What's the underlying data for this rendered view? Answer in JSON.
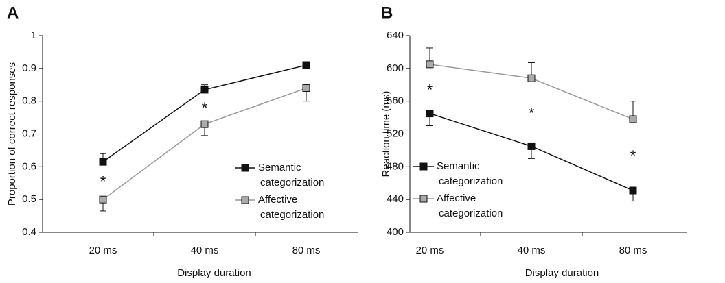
{
  "chart_data": [
    {
      "type": "line",
      "panel_label": "A",
      "xlabel": "Display duration",
      "ylabel": "Proportion of correct responses",
      "categories": [
        "20 ms",
        "40 ms",
        "80 ms"
      ],
      "ylim": [
        0.4,
        1
      ],
      "yticks": [
        0.4,
        0.5,
        0.6,
        0.7,
        0.8,
        0.9,
        1
      ],
      "legend": "lower right",
      "annotations": [
        "*",
        "*",
        null
      ],
      "series": [
        {
          "name": "Semantic categorization",
          "color": "#111111",
          "marker_fill": "#111111",
          "values": [
            0.615,
            0.835,
            0.91
          ],
          "errors": [
            0.025,
            0.015,
            0.01
          ],
          "error_direction": "up"
        },
        {
          "name": "Affective categorization",
          "color": "#999999",
          "marker_fill": "#aaaaaa",
          "values": [
            0.5,
            0.73,
            0.84
          ],
          "errors": [
            0.035,
            0.035,
            0.04
          ],
          "error_direction": "down"
        }
      ]
    },
    {
      "type": "line",
      "panel_label": "B",
      "xlabel": "Display duration",
      "ylabel": "Reaction time (ms)",
      "categories": [
        "20 ms",
        "40 ms",
        "80 ms"
      ],
      "ylim": [
        400,
        640
      ],
      "yticks": [
        400,
        440,
        480,
        520,
        560,
        600,
        640
      ],
      "legend": "lower left",
      "annotations": [
        "*",
        "*",
        "*"
      ],
      "series": [
        {
          "name": "Semantic categorization",
          "color": "#111111",
          "marker_fill": "#111111",
          "values": [
            545,
            505,
            451
          ],
          "errors": [
            15,
            15,
            13
          ],
          "error_direction": "down"
        },
        {
          "name": "Affective categorization",
          "color": "#999999",
          "marker_fill": "#aaaaaa",
          "values": [
            605,
            588,
            538
          ],
          "errors": [
            20,
            19,
            22
          ],
          "error_direction": "up"
        }
      ]
    }
  ]
}
